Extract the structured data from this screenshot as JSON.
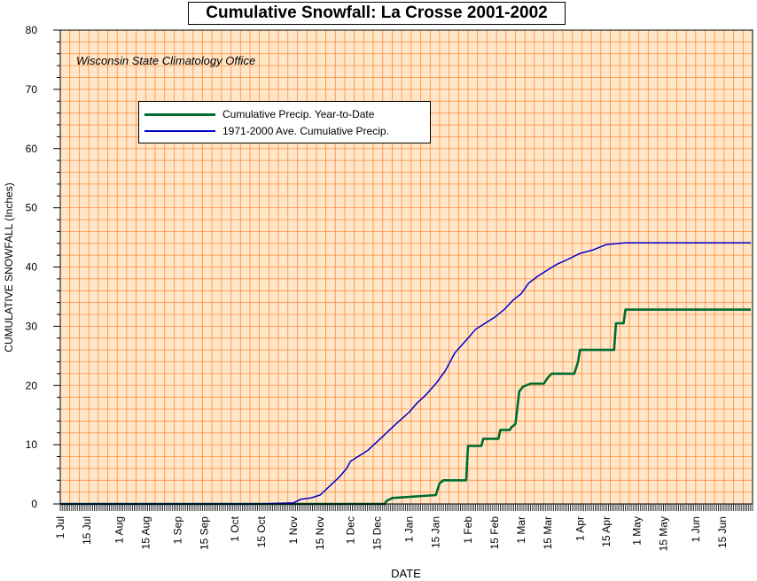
{
  "chart_data": {
    "type": "line",
    "title": "Cumulative Snowfall: La Crosse 2001-2002",
    "annotation": "Wisconsin State Climatology Office",
    "xlabel": "DATE",
    "ylabel": "CUMULATIVE SNOWFALL (Inches)",
    "ylim": [
      0,
      80
    ],
    "yticks": [
      0,
      10,
      20,
      30,
      40,
      50,
      60,
      70,
      80
    ],
    "xlim": [
      "2001-07-01",
      "2002-06-30"
    ],
    "xtick_labels": [
      "1 Jul",
      "15 Jul",
      "1 Aug",
      "15 Aug",
      "1 Sep",
      "15 Sep",
      "1 Oct",
      "15 Oct",
      "1 Nov",
      "15 Nov",
      "1 Dec",
      "15 Dec",
      "1 Jan",
      "15 Jan",
      "1 Feb",
      "15 Feb",
      "1 Mar",
      "15 Mar",
      "1 Apr",
      "15 Apr",
      "1 May",
      "15 May",
      "1 Jun",
      "15 Jun"
    ],
    "xtick_dates": [
      "2001-07-01",
      "2001-07-15",
      "2001-08-01",
      "2001-08-15",
      "2001-09-01",
      "2001-09-15",
      "2001-10-01",
      "2001-10-15",
      "2001-11-01",
      "2001-11-15",
      "2001-12-01",
      "2001-12-15",
      "2002-01-01",
      "2002-01-15",
      "2002-02-01",
      "2002-02-15",
      "2002-03-01",
      "2002-03-15",
      "2002-04-01",
      "2002-04-15",
      "2002-05-01",
      "2002-05-15",
      "2002-06-01",
      "2002-06-15"
    ],
    "grid": true,
    "legend_position": "upper-left",
    "colors": {
      "background": "#ffe6c8",
      "grid": "#ff8c3c",
      "ytd": "#006b2e",
      "avg": "#0000c8"
    },
    "series": [
      {
        "name": "Cumulative Precip. Year-to-Date",
        "color": "#006b2e",
        "step": true,
        "points": [
          [
            "2001-07-01",
            0
          ],
          [
            "2001-12-19",
            0
          ],
          [
            "2001-12-20",
            0.5
          ],
          [
            "2001-12-23",
            1.0
          ],
          [
            "2002-01-15",
            1.5
          ],
          [
            "2002-01-17",
            3.5
          ],
          [
            "2002-01-19",
            4.0
          ],
          [
            "2002-01-31",
            4.0
          ],
          [
            "2002-02-01",
            9.8
          ],
          [
            "2002-02-08",
            9.8
          ],
          [
            "2002-02-09",
            11.0
          ],
          [
            "2002-02-17",
            11.0
          ],
          [
            "2002-02-18",
            12.5
          ],
          [
            "2002-02-23",
            12.5
          ],
          [
            "2002-02-24",
            13.0
          ],
          [
            "2002-02-26",
            13.5
          ],
          [
            "2002-02-28",
            19.0
          ],
          [
            "2002-03-02",
            19.8
          ],
          [
            "2002-03-06",
            20.3
          ],
          [
            "2002-03-13",
            20.3
          ],
          [
            "2002-03-15",
            21.3
          ],
          [
            "2002-03-17",
            22.0
          ],
          [
            "2002-03-29",
            22.0
          ],
          [
            "2002-03-31",
            24.0
          ],
          [
            "2002-04-01",
            26.0
          ],
          [
            "2002-04-19",
            26.0
          ],
          [
            "2002-04-20",
            30.5
          ],
          [
            "2002-04-24",
            30.5
          ],
          [
            "2002-04-25",
            32.8
          ],
          [
            "2002-06-30",
            32.8
          ]
        ]
      },
      {
        "name": "1971-2000 Ave. Cumulative Precip.",
        "color": "#0000c8",
        "step": false,
        "points": [
          [
            "2001-07-01",
            0
          ],
          [
            "2001-10-15",
            0
          ],
          [
            "2001-10-25",
            0.1
          ],
          [
            "2001-11-01",
            0.2
          ],
          [
            "2001-11-05",
            0.8
          ],
          [
            "2001-11-10",
            1.0
          ],
          [
            "2001-11-15",
            1.5
          ],
          [
            "2001-11-20",
            3.0
          ],
          [
            "2001-11-25",
            4.5
          ],
          [
            "2001-11-29",
            6.0
          ],
          [
            "2001-12-01",
            7.2
          ],
          [
            "2001-12-05",
            8.0
          ],
          [
            "2001-12-10",
            9.0
          ],
          [
            "2001-12-15",
            10.5
          ],
          [
            "2001-12-20",
            12.0
          ],
          [
            "2001-12-25",
            13.5
          ],
          [
            "2002-01-01",
            15.5
          ],
          [
            "2002-01-05",
            17.0
          ],
          [
            "2002-01-10",
            18.5
          ],
          [
            "2002-01-15",
            20.3
          ],
          [
            "2002-01-20",
            22.5
          ],
          [
            "2002-01-25",
            25.5
          ],
          [
            "2002-02-01",
            28.0
          ],
          [
            "2002-02-05",
            29.5
          ],
          [
            "2002-02-10",
            30.5
          ],
          [
            "2002-02-15",
            31.5
          ],
          [
            "2002-02-20",
            32.8
          ],
          [
            "2002-02-25",
            34.5
          ],
          [
            "2002-03-01",
            35.5
          ],
          [
            "2002-03-05",
            37.3
          ],
          [
            "2002-03-10",
            38.5
          ],
          [
            "2002-03-15",
            39.5
          ],
          [
            "2002-03-20",
            40.5
          ],
          [
            "2002-03-25",
            41.2
          ],
          [
            "2002-04-01",
            42.3
          ],
          [
            "2002-04-08",
            42.9
          ],
          [
            "2002-04-15",
            43.8
          ],
          [
            "2002-04-25",
            44.1
          ],
          [
            "2002-06-30",
            44.1
          ]
        ]
      }
    ]
  }
}
